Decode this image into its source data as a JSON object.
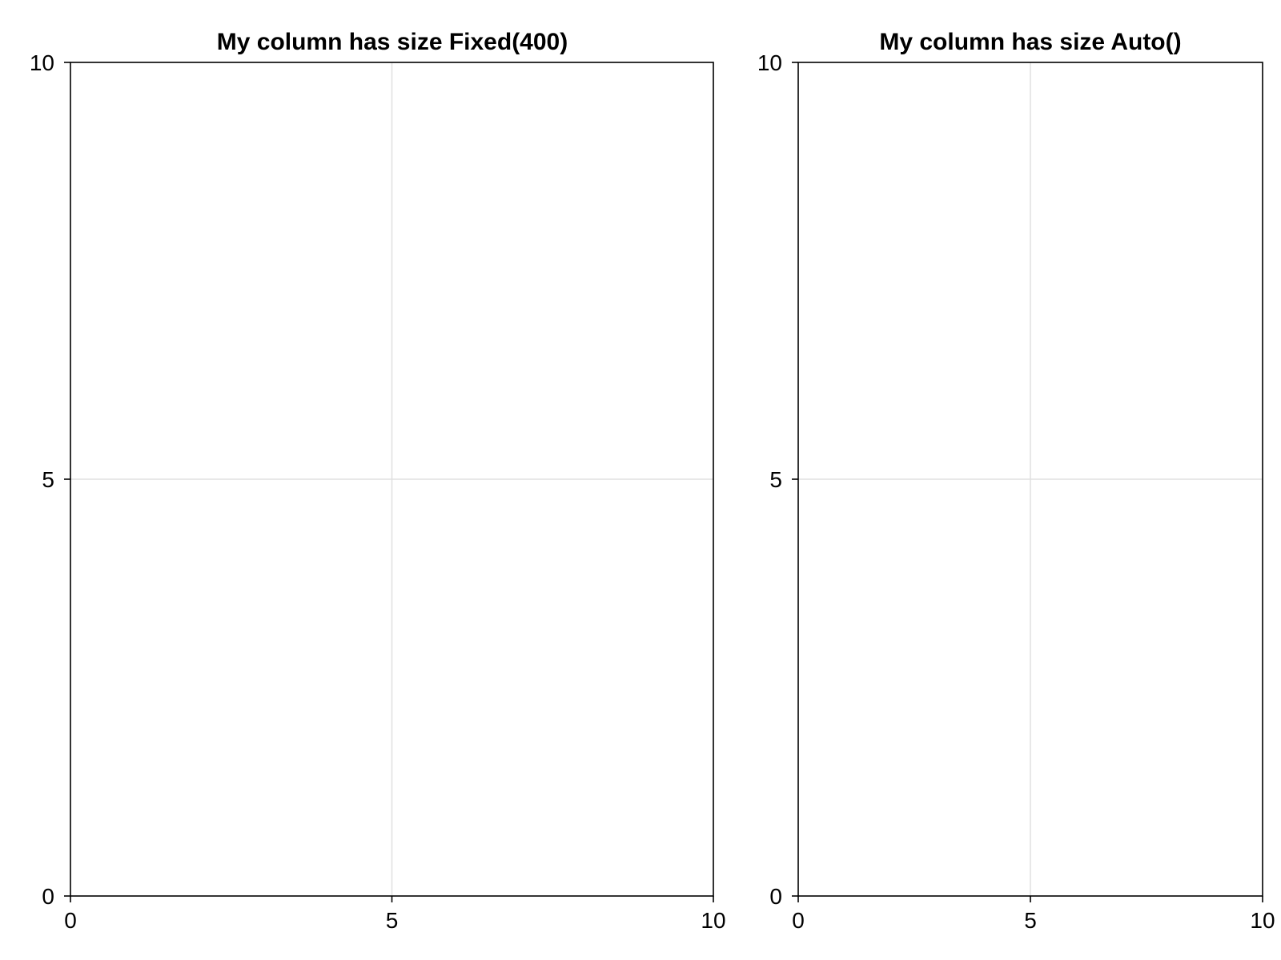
{
  "colors": {
    "background": "#ffffff",
    "frame": "#000000",
    "grid": "#e0e0e0",
    "text": "#000000"
  },
  "chart_data": [
    {
      "type": "line",
      "title": "My column has size Fixed(400)",
      "xlabel": "",
      "ylabel": "",
      "xlim": [
        0,
        10
      ],
      "ylim": [
        0,
        10
      ],
      "xticks": [
        0,
        5,
        10
      ],
      "yticks": [
        0,
        5,
        10
      ],
      "xtick_labels": [
        "0",
        "5",
        "10"
      ],
      "ytick_labels": [
        "0",
        "5",
        "10"
      ],
      "grid": true,
      "series": []
    },
    {
      "type": "line",
      "title": "My column has size Auto()",
      "xlabel": "",
      "ylabel": "",
      "xlim": [
        0,
        10
      ],
      "ylim": [
        0,
        10
      ],
      "xticks": [
        0,
        5,
        10
      ],
      "yticks": [
        0,
        5,
        10
      ],
      "xtick_labels": [
        "0",
        "5",
        "10"
      ],
      "ytick_labels": [
        "0",
        "5",
        "10"
      ],
      "grid": true,
      "series": []
    }
  ]
}
